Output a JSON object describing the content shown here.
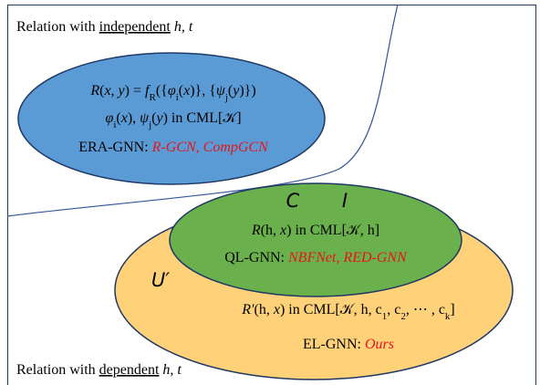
{
  "regions": {
    "top": [
      {
        "text": "Relation with "
      },
      {
        "text": "independent",
        "style": "u"
      },
      {
        "text": " h, t",
        "style": "i"
      }
    ],
    "bottom": [
      {
        "text": "Relation with "
      },
      {
        "text": "dependent",
        "style": "u"
      },
      {
        "text": " h, t",
        "style": "i"
      }
    ]
  },
  "era": [
    [
      {
        "text": "R",
        "style": "i"
      },
      {
        "text": "("
      },
      {
        "text": "x, y",
        "style": "i"
      },
      {
        "text": ") = "
      },
      {
        "text": "f",
        "style": "i"
      },
      {
        "text": "R",
        "style": "sub"
      },
      {
        "text": "({"
      },
      {
        "text": "φ",
        "style": "i"
      },
      {
        "text": "i",
        "style": "sub"
      },
      {
        "text": "("
      },
      {
        "text": "x",
        "style": "i"
      },
      {
        "text": ")}, {"
      },
      {
        "text": "ψ",
        "style": "i"
      },
      {
        "text": "j",
        "style": "sub"
      },
      {
        "text": "("
      },
      {
        "text": "y",
        "style": "i"
      },
      {
        "text": ")})"
      }
    ],
    [
      {
        "text": "φ",
        "style": "i"
      },
      {
        "text": "i",
        "style": "sub"
      },
      {
        "text": "("
      },
      {
        "text": "x",
        "style": "i"
      },
      {
        "text": "), "
      },
      {
        "text": "ψ",
        "style": "i"
      },
      {
        "text": "j",
        "style": "sub"
      },
      {
        "text": "("
      },
      {
        "text": "y",
        "style": "i"
      },
      {
        "text": ") in CML[𝒦]"
      }
    ],
    [
      {
        "text": "ERA-GNN: "
      },
      {
        "text": "R-GCN, CompGCN",
        "style": "ir"
      }
    ]
  ],
  "ql": {
    "labels": [
      "C",
      "I"
    ],
    "lines": [
      [
        {
          "text": "R",
          "style": "i"
        },
        {
          "text": "(h, "
        },
        {
          "text": "x",
          "style": "i"
        },
        {
          "text": ") in CML[𝒦, h]"
        }
      ],
      [
        {
          "text": "QL-GNN: "
        },
        {
          "text": "NBFNet, RED-GNN",
          "style": "ir"
        }
      ]
    ]
  },
  "el": {
    "label": "U′",
    "lines": [
      [
        {
          "text": "R′",
          "style": "i"
        },
        {
          "text": "(h, "
        },
        {
          "text": "x",
          "style": "i"
        },
        {
          "text": ") in CML[𝒦, h, c"
        },
        {
          "text": "1",
          "style": "sub"
        },
        {
          "text": ", c"
        },
        {
          "text": "2",
          "style": "sub"
        },
        {
          "text": ", ⋯ , c"
        },
        {
          "text": "k",
          "style": "sub"
        },
        {
          "text": "]"
        }
      ],
      [
        {
          "text": "EL-GNN: "
        },
        {
          "text": "Ours",
          "style": "ir"
        }
      ]
    ]
  }
}
